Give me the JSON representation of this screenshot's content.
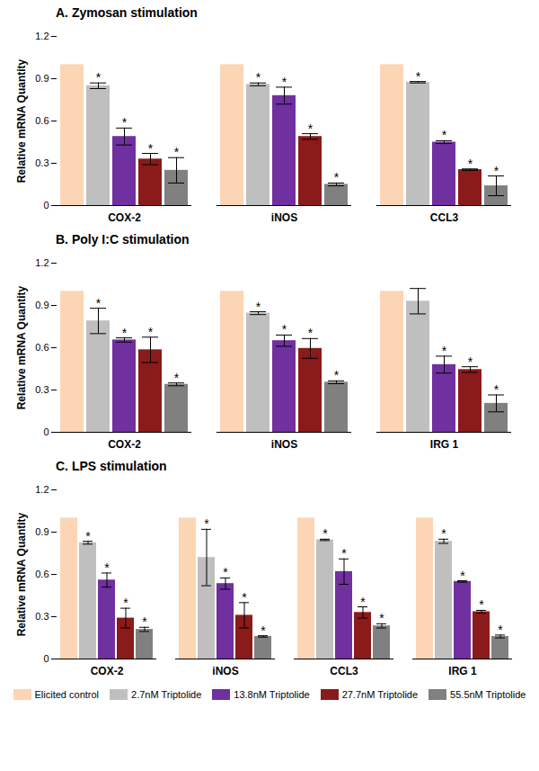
{
  "chart_data": [
    {
      "type": "bar",
      "title": "A. Zymosan stimulation",
      "y_label": "Relative mRNA Quantity",
      "categories": [
        "COX-2",
        "iNOS",
        "CCL3"
      ],
      "ylim": [
        0,
        1.2
      ],
      "yticks": [
        0,
        0.3,
        0.6,
        0.9,
        1.2
      ],
      "series": [
        {
          "name": "Elicited control",
          "color": "#fcd5b5",
          "values": [
            1,
            1,
            1
          ],
          "errors": [
            null,
            null,
            null
          ],
          "annotations": [
            null,
            null,
            null
          ]
        },
        {
          "name": "2.7nM Triptolide",
          "color": "#bfbfbf",
          "values": [
            0.85,
            0.86,
            0.875
          ],
          "errors": [
            0.02,
            0.01,
            0.005
          ],
          "annotations": [
            "*",
            "*",
            "*"
          ]
        },
        {
          "name": "13.8nM Triptolide",
          "color": "#7030a0",
          "values": [
            0.49,
            0.78,
            0.45
          ],
          "errors": [
            0.06,
            0.06,
            0.01
          ],
          "annotations": [
            "*",
            "*",
            "*"
          ]
        },
        {
          "name": "27.7nM Triptolide",
          "color": "#8b1a1a",
          "values": [
            0.33,
            0.49,
            0.255
          ],
          "errors": [
            0.04,
            0.02,
            0.005
          ],
          "annotations": [
            "*",
            "*",
            "*"
          ]
        },
        {
          "name": "55.5nM Triptolide",
          "color": "#808080",
          "values": [
            0.25,
            0.15,
            0.14
          ],
          "errors": [
            0.09,
            0.01,
            0.07
          ],
          "annotations": [
            "*",
            "*",
            "*"
          ]
        }
      ]
    },
    {
      "type": "bar",
      "title": "B. Poly I:C stimulation",
      "y_label": "Relative mRNA Quantity",
      "categories": [
        "COX-2",
        "iNOS",
        "IRG 1"
      ],
      "ylim": [
        0,
        1.2
      ],
      "yticks": [
        0,
        0.3,
        0.6,
        0.9,
        1.2
      ],
      "series": [
        {
          "name": "Elicited control",
          "color": "#fcd5b5",
          "values": [
            1,
            1,
            1
          ],
          "errors": [
            null,
            null,
            null
          ],
          "annotations": [
            null,
            null,
            null
          ]
        },
        {
          "name": "2.7nM Triptolide",
          "color": "#bfbfbf",
          "values": [
            0.79,
            0.845,
            0.93
          ],
          "errors": [
            0.09,
            0.01,
            0.09
          ],
          "annotations": [
            "*",
            "*",
            null
          ]
        },
        {
          "name": "13.8nM Triptolide",
          "color": "#7030a0",
          "values": [
            0.655,
            0.65,
            0.48
          ],
          "errors": [
            0.015,
            0.04,
            0.06
          ],
          "annotations": [
            "*",
            "*",
            "*"
          ]
        },
        {
          "name": "27.7nM Triptolide",
          "color": "#8b1a1a",
          "values": [
            0.585,
            0.595,
            0.445
          ],
          "errors": [
            0.09,
            0.07,
            0.02
          ],
          "annotations": [
            "*",
            "*",
            "*"
          ]
        },
        {
          "name": "55.5nM Triptolide",
          "color": "#808080",
          "values": [
            0.34,
            0.355,
            0.205
          ],
          "errors": [
            0.01,
            0.01,
            0.06
          ],
          "annotations": [
            "*",
            "*",
            "*"
          ]
        }
      ]
    },
    {
      "type": "bar",
      "title": "C. LPS stimulation",
      "y_label": "Relative mRNA Quantity",
      "categories": [
        "COX-2",
        "iNOS",
        "CCL3",
        "IRG 1"
      ],
      "ylim": [
        0,
        1.2
      ],
      "yticks": [
        0,
        0.3,
        0.6,
        0.9,
        1.2
      ],
      "legend": "bottom",
      "series": [
        {
          "name": "Elicited control",
          "color": "#fcd5b5",
          "values": [
            1,
            1,
            1,
            1
          ],
          "errors": [
            null,
            null,
            null,
            null
          ],
          "annotations": [
            null,
            null,
            null,
            null
          ]
        },
        {
          "name": "2.7nM Triptolide",
          "color": "#bfbfbf",
          "values": [
            0.825,
            0.72,
            0.845,
            0.835
          ],
          "errors": [
            0.01,
            0.2,
            0.005,
            0.015
          ],
          "annotations": [
            "*",
            "*",
            "*",
            "*"
          ]
        },
        {
          "name": "13.8nM Triptolide",
          "color": "#7030a0",
          "values": [
            0.56,
            0.535,
            0.62,
            0.55
          ],
          "errors": [
            0.05,
            0.04,
            0.09,
            0.005
          ],
          "annotations": [
            "*",
            "*",
            "*",
            "*"
          ]
        },
        {
          "name": "27.7nM Triptolide",
          "color": "#8b1a1a",
          "values": [
            0.29,
            0.31,
            0.33,
            0.335
          ],
          "errors": [
            0.07,
            0.09,
            0.04,
            0.01
          ],
          "annotations": [
            "*",
            "*",
            "*",
            "*"
          ]
        },
        {
          "name": "55.5nM Triptolide",
          "color": "#808080",
          "values": [
            0.21,
            0.16,
            0.235,
            0.16
          ],
          "errors": [
            0.015,
            0.005,
            0.015,
            0.01
          ],
          "annotations": [
            "*",
            "*",
            "*",
            "*"
          ]
        }
      ]
    }
  ]
}
